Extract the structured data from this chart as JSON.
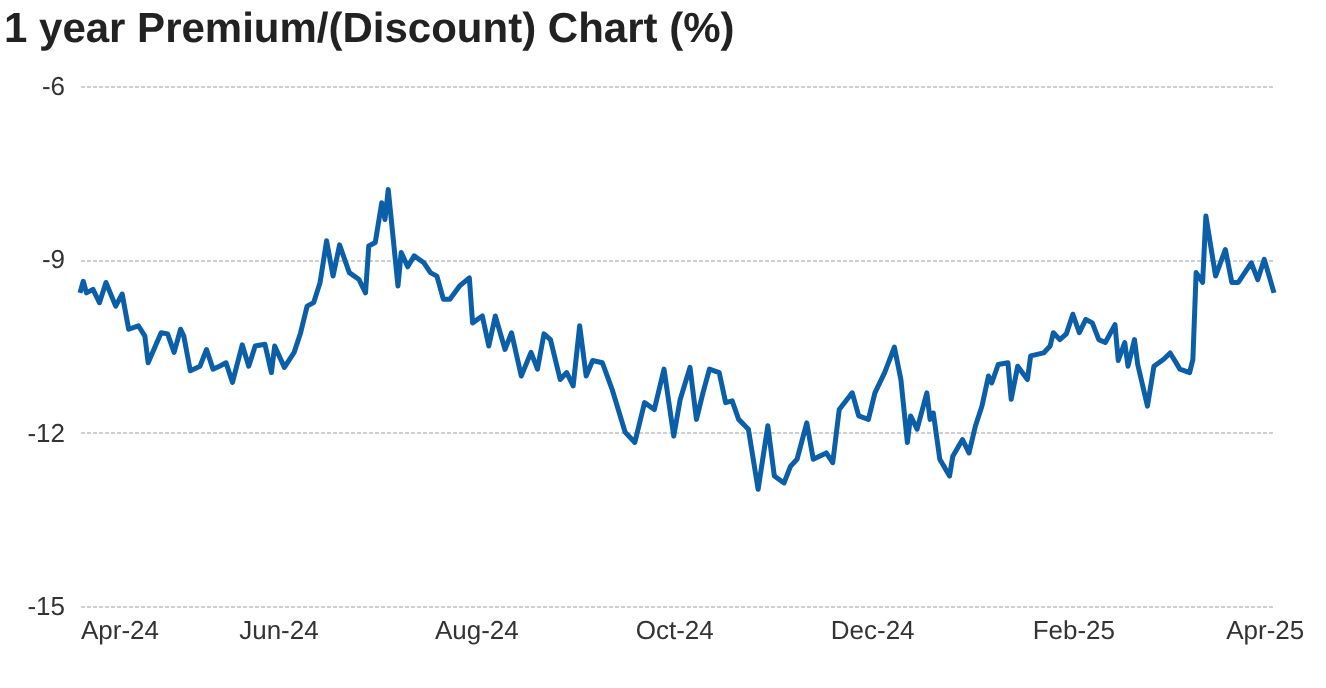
{
  "chart_data": {
    "type": "line",
    "title": "1 year Premium/(Discount) Chart (%)",
    "x": [
      "2024-04-01",
      "2024-04-02",
      "2024-04-03",
      "2024-04-05",
      "2024-04-07",
      "2024-04-09",
      "2024-04-12",
      "2024-04-14",
      "2024-04-16",
      "2024-04-19",
      "2024-04-21",
      "2024-04-22",
      "2024-04-26",
      "2024-04-28",
      "2024-04-30",
      "2024-05-02",
      "2024-05-03",
      "2024-05-05",
      "2024-05-08",
      "2024-05-10",
      "2024-05-12",
      "2024-05-14",
      "2024-05-16",
      "2024-05-18",
      "2024-05-21",
      "2024-05-23",
      "2024-05-25",
      "2024-05-28",
      "2024-05-30",
      "2024-05-31",
      "2024-06-03",
      "2024-06-06",
      "2024-06-08",
      "2024-06-10",
      "2024-06-12",
      "2024-06-14",
      "2024-06-16",
      "2024-06-18",
      "2024-06-20",
      "2024-06-23",
      "2024-06-26",
      "2024-06-28",
      "2024-06-29",
      "2024-07-01",
      "2024-07-03",
      "2024-07-04",
      "2024-07-05",
      "2024-07-08",
      "2024-07-09",
      "2024-07-11",
      "2024-07-13",
      "2024-07-16",
      "2024-07-18",
      "2024-07-20",
      "2024-07-22",
      "2024-07-24",
      "2024-07-27",
      "2024-07-30",
      "2024-07-31",
      "2024-08-03",
      "2024-08-05",
      "2024-08-07",
      "2024-08-10",
      "2024-08-12",
      "2024-08-15",
      "2024-08-18",
      "2024-08-20",
      "2024-08-22",
      "2024-08-24",
      "2024-08-27",
      "2024-08-29",
      "2024-08-31",
      "2024-09-02",
      "2024-09-04",
      "2024-09-06",
      "2024-09-09",
      "2024-09-12",
      "2024-09-16",
      "2024-09-19",
      "2024-09-22",
      "2024-09-25",
      "2024-09-28",
      "2024-10-01",
      "2024-10-03",
      "2024-10-06",
      "2024-10-08",
      "2024-10-10",
      "2024-10-12",
      "2024-10-15",
      "2024-10-17",
      "2024-10-19",
      "2024-10-21",
      "2024-10-24",
      "2024-10-27",
      "2024-10-30",
      "2024-11-01",
      "2024-11-04",
      "2024-11-06",
      "2024-11-08",
      "2024-11-11",
      "2024-11-13",
      "2024-11-17",
      "2024-11-19",
      "2024-11-21",
      "2024-11-25",
      "2024-11-27",
      "2024-11-30",
      "2024-12-02",
      "2024-12-05",
      "2024-12-08",
      "2024-12-10",
      "2024-12-12",
      "2024-12-13",
      "2024-12-15",
      "2024-12-18",
      "2024-12-19",
      "2024-12-20",
      "2024-12-22",
      "2024-12-25",
      "2024-12-26",
      "2024-12-29",
      "2024-12-31",
      "2025-01-02",
      "2025-01-04",
      "2025-01-06",
      "2025-01-07",
      "2025-01-09",
      "2025-01-12",
      "2025-01-13",
      "2025-01-15",
      "2025-01-18",
      "2025-01-19",
      "2025-01-23",
      "2025-01-25",
      "2025-01-26",
      "2025-01-28",
      "2025-01-30",
      "2025-02-01",
      "2025-02-03",
      "2025-02-05",
      "2025-02-07",
      "2025-02-09",
      "2025-02-11",
      "2025-02-14",
      "2025-02-15",
      "2025-02-17",
      "2025-02-18",
      "2025-02-20",
      "2025-02-21",
      "2025-02-24",
      "2025-02-26",
      "2025-03-01",
      "2025-03-03",
      "2025-03-06",
      "2025-03-09",
      "2025-03-10",
      "2025-03-11",
      "2025-03-13",
      "2025-03-14",
      "2025-03-17",
      "2025-03-20",
      "2025-03-22",
      "2025-03-24",
      "2025-03-28",
      "2025-03-30",
      "2025-04-01",
      "2025-04-04"
    ],
    "series": [
      {
        "color": "#0b5ea8",
        "values": [
          -9.58,
          -9.38,
          -9.58,
          -9.52,
          -9.75,
          -9.4,
          -9.81,
          -9.6,
          -10.21,
          -10.15,
          -10.33,
          -10.79,
          -10.27,
          -10.29,
          -10.61,
          -10.21,
          -10.33,
          -10.93,
          -10.85,
          -10.56,
          -10.9,
          -10.85,
          -10.79,
          -11.13,
          -10.48,
          -10.85,
          -10.5,
          -10.47,
          -10.96,
          -10.5,
          -10.87,
          -10.61,
          -10.27,
          -9.81,
          -9.75,
          -9.4,
          -8.68,
          -9.29,
          -8.75,
          -9.23,
          -9.35,
          -9.58,
          -8.77,
          -8.71,
          -8.02,
          -8.31,
          -7.79,
          -9.46,
          -8.88,
          -9.13,
          -8.94,
          -9.06,
          -9.23,
          -9.29,
          -9.69,
          -9.69,
          -9.46,
          -9.32,
          -10.1,
          -9.98,
          -10.5,
          -9.98,
          -10.56,
          -10.27,
          -11.02,
          -10.61,
          -10.9,
          -10.29,
          -10.39,
          -11.08,
          -10.96,
          -11.19,
          -10.15,
          -11.02,
          -10.75,
          -10.79,
          -11.25,
          -11.99,
          -12.17,
          -11.48,
          -11.6,
          -10.9,
          -12.06,
          -11.42,
          -10.87,
          -11.77,
          -11.31,
          -10.9,
          -10.96,
          -11.48,
          -11.45,
          -11.77,
          -11.94,
          -12.98,
          -11.88,
          -12.75,
          -12.87,
          -12.58,
          -12.46,
          -11.83,
          -12.46,
          -12.35,
          -12.52,
          -11.6,
          -11.31,
          -11.71,
          -11.77,
          -11.31,
          -10.96,
          -10.52,
          -11.08,
          -12.17,
          -11.71,
          -11.94,
          -11.31,
          -11.77,
          -11.66,
          -12.46,
          -12.75,
          -12.41,
          -12.12,
          -12.35,
          -11.88,
          -11.54,
          -11.02,
          -11.14,
          -10.82,
          -10.79,
          -11.42,
          -10.85,
          -11.08,
          -10.67,
          -10.62,
          -10.5,
          -10.27,
          -10.39,
          -10.29,
          -9.95,
          -10.27,
          -10.04,
          -10.1,
          -10.39,
          -10.44,
          -10.13,
          -10.75,
          -10.44,
          -10.85,
          -10.39,
          -10.82,
          -11.54,
          -10.85,
          -10.73,
          -10.62,
          -10.9,
          -10.96,
          -10.73,
          -9.23,
          -9.4,
          -8.25,
          -9.29,
          -8.83,
          -9.4,
          -9.4,
          -9.06,
          -9.35,
          -9.0,
          -9.58
        ]
      }
    ],
    "xlim": [
      "2024-04-01",
      "2025-04-04"
    ],
    "xticks": [
      {
        "value": "2024-04-01",
        "label": "Apr-24"
      },
      {
        "value": "2024-06-01",
        "label": "Jun-24"
      },
      {
        "value": "2024-08-01",
        "label": "Aug-24"
      },
      {
        "value": "2024-10-01",
        "label": "Oct-24"
      },
      {
        "value": "2024-12-01",
        "label": "Dec-24"
      },
      {
        "value": "2025-02-01",
        "label": "Feb-25"
      },
      {
        "value": "2025-04-01",
        "label": "Apr-25"
      }
    ],
    "ylim": [
      -15,
      -6
    ],
    "yticks": [
      -15,
      -12,
      -9,
      -6
    ],
    "grid": "y",
    "line_style": "solid"
  }
}
